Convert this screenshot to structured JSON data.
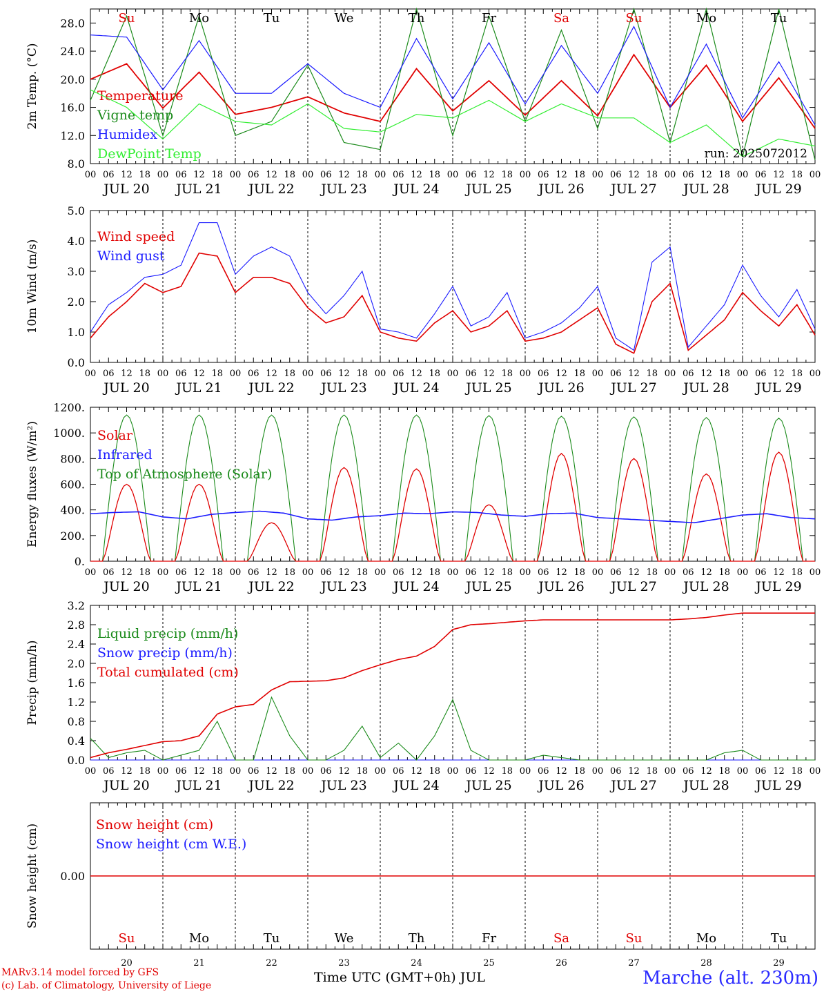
{
  "chart_data": [
    {
      "type": "line",
      "ylabel": "2m Temp. (°C)",
      "ylim": [
        8,
        30
      ],
      "yticks": [
        "8.0",
        "12.0",
        "16.0",
        "20.0",
        "24.0",
        "28.0"
      ],
      "x": [
        0,
        12,
        24,
        36,
        48,
        60,
        72,
        84,
        96,
        108,
        120,
        132,
        144,
        156,
        168,
        180,
        192,
        204,
        216,
        228,
        240
      ],
      "series": [
        {
          "name": "Temperature",
          "color": "#e00000",
          "values": [
            20.0,
            22.2,
            15.9,
            21.0,
            15.0,
            16.0,
            17.5,
            15.2,
            14.0,
            21.5,
            15.5,
            19.8,
            14.9,
            19.8,
            14.8,
            23.5,
            16.0,
            22.0,
            14.0,
            20.2,
            13.0
          ]
        },
        {
          "name": "Vigne temp",
          "color": "#1a8a1a",
          "values": [
            17.0,
            29.0,
            12.0,
            29.0,
            12.0,
            14.0,
            22.0,
            11.0,
            10.0,
            30.0,
            12.0,
            29.0,
            14.0,
            27.0,
            13.0,
            30.0,
            11.0,
            30.0,
            9.0,
            30.0,
            8.5
          ]
        },
        {
          "name": "Humidex",
          "color": "#1a1aff",
          "values": [
            26.3,
            26.0,
            18.5,
            25.5,
            18.0,
            18.0,
            22.2,
            18.0,
            16.0,
            25.8,
            17.2,
            25.2,
            16.5,
            24.8,
            18.0,
            27.5,
            16.0,
            25.0,
            14.5,
            22.5,
            13.5
          ]
        },
        {
          "name": "DewPoint Temp",
          "color": "#33ee33",
          "values": [
            18.5,
            16.0,
            11.5,
            16.5,
            14.0,
            13.5,
            16.5,
            13.0,
            12.5,
            15.0,
            14.5,
            17.0,
            14.0,
            16.5,
            14.5,
            14.5,
            11.0,
            13.5,
            9.0,
            11.5,
            10.5
          ]
        }
      ],
      "annotation": "run: 2025072012",
      "day_letters": [
        {
          "label": "Su",
          "color": "#e00000"
        },
        {
          "label": "Mo",
          "color": "#000000"
        },
        {
          "label": "Tu",
          "color": "#000000"
        },
        {
          "label": "We",
          "color": "#000000"
        },
        {
          "label": "Th",
          "color": "#000000"
        },
        {
          "label": "Fr",
          "color": "#000000"
        },
        {
          "label": "Sa",
          "color": "#e00000"
        },
        {
          "label": "Su",
          "color": "#e00000"
        },
        {
          "label": "Mo",
          "color": "#000000"
        },
        {
          "label": "Tu",
          "color": "#000000"
        }
      ]
    },
    {
      "type": "line",
      "ylabel": "10m Wind (m/s)",
      "ylim": [
        0,
        5
      ],
      "yticks": [
        "0.0",
        "1.0",
        "2.0",
        "3.0",
        "4.0",
        "5.0"
      ],
      "x": [
        0,
        6,
        12,
        18,
        24,
        30,
        36,
        42,
        48,
        54,
        60,
        66,
        72,
        78,
        84,
        90,
        96,
        102,
        108,
        114,
        120,
        126,
        132,
        138,
        144,
        150,
        156,
        162,
        168,
        174,
        180,
        186,
        192,
        198,
        204,
        210,
        216,
        222,
        228,
        234,
        240
      ],
      "series": [
        {
          "name": "Wind speed",
          "color": "#e00000",
          "values": [
            0.8,
            1.5,
            2.0,
            2.6,
            2.3,
            2.5,
            3.6,
            3.5,
            2.3,
            2.8,
            2.8,
            2.6,
            1.8,
            1.3,
            1.5,
            2.2,
            1.0,
            0.8,
            0.7,
            1.3,
            1.7,
            1.0,
            1.2,
            1.7,
            0.7,
            0.8,
            1.0,
            1.4,
            1.8,
            0.6,
            0.3,
            2.0,
            2.6,
            0.4,
            0.9,
            1.4,
            2.3,
            1.7,
            1.2,
            1.9,
            0.9
          ]
        },
        {
          "name": "Wind gust",
          "color": "#1a1aff",
          "values": [
            1.0,
            1.9,
            2.3,
            2.8,
            2.9,
            3.2,
            4.6,
            4.6,
            2.9,
            3.5,
            3.8,
            3.5,
            2.3,
            1.6,
            2.2,
            3.0,
            1.1,
            1.0,
            0.8,
            1.6,
            2.5,
            1.2,
            1.5,
            2.3,
            0.8,
            1.0,
            1.3,
            1.8,
            2.5,
            0.8,
            0.4,
            3.3,
            3.8,
            0.5,
            1.2,
            1.9,
            3.2,
            2.2,
            1.5,
            2.4,
            1.1
          ]
        }
      ]
    },
    {
      "type": "line",
      "ylabel": "Energy fluxes (W/m²)",
      "ylim": [
        0,
        1200
      ],
      "yticks": [
        "0.",
        "200.",
        "400.",
        "600.",
        "800.",
        "1000.",
        "1200."
      ],
      "solar_daily_peak": [
        600,
        600,
        300,
        730,
        720,
        440,
        840,
        800,
        680,
        850
      ],
      "toa_daily_peak": [
        1140,
        1140,
        1140,
        1140,
        1140,
        1135,
        1130,
        1125,
        1120,
        1115
      ],
      "infrared_hourly_mean": [
        370,
        380,
        385,
        345,
        330,
        365,
        380,
        390,
        375,
        330,
        320,
        345,
        355,
        375,
        370,
        385,
        380,
        360,
        350,
        370,
        375,
        340,
        330,
        320,
        310,
        300,
        330,
        360,
        370,
        340,
        330
      ],
      "series": [
        {
          "name": "Solar",
          "color": "#e00000"
        },
        {
          "name": "Infrared",
          "color": "#1a1aff"
        },
        {
          "name": "Top of Atmosphere (Solar)",
          "color": "#1a8a1a"
        }
      ]
    },
    {
      "type": "line",
      "ylabel": "Precip (mm/h)",
      "ylim": [
        0,
        3.2
      ],
      "yticks": [
        "0.0",
        "0.4",
        "0.8",
        "1.2",
        "1.6",
        "2.0",
        "2.4",
        "2.8",
        "3.2"
      ],
      "x": [
        0,
        6,
        12,
        18,
        24,
        30,
        36,
        42,
        48,
        54,
        60,
        66,
        72,
        78,
        84,
        90,
        96,
        102,
        108,
        114,
        120,
        126,
        132,
        138,
        144,
        150,
        156,
        162,
        168,
        174,
        180,
        186,
        192,
        198,
        204,
        210,
        216,
        222,
        228,
        234,
        240
      ],
      "series": [
        {
          "name": "Liquid precip (mm/h)",
          "color": "#1a8a1a",
          "values": [
            0.45,
            0.05,
            0.15,
            0.2,
            0.0,
            0.1,
            0.2,
            0.8,
            0.0,
            0.0,
            1.3,
            0.5,
            0.0,
            0.0,
            0.2,
            0.7,
            0.05,
            0.35,
            0.0,
            0.5,
            1.25,
            0.2,
            0.0,
            0.0,
            0.0,
            0.1,
            0.05,
            0.0,
            0.0,
            0.0,
            0.0,
            0.0,
            0.0,
            0.0,
            0.0,
            0.15,
            0.2,
            0.0,
            0.0,
            0.0,
            0.0
          ]
        },
        {
          "name": "Snow precip (mm/h)",
          "color": "#1a1aff",
          "values": [
            0,
            0,
            0,
            0,
            0,
            0,
            0,
            0,
            0,
            0,
            0,
            0,
            0,
            0,
            0,
            0,
            0,
            0,
            0,
            0,
            0,
            0,
            0,
            0,
            0,
            0,
            0,
            0,
            0,
            0,
            0,
            0,
            0,
            0,
            0,
            0,
            0,
            0,
            0,
            0,
            0
          ]
        },
        {
          "name": "Total cumulated (cm)",
          "color": "#e00000",
          "values": [
            0.05,
            0.15,
            0.22,
            0.3,
            0.38,
            0.4,
            0.5,
            0.95,
            1.1,
            1.15,
            1.45,
            1.62,
            1.63,
            1.64,
            1.7,
            1.85,
            1.97,
            2.08,
            2.15,
            2.35,
            2.7,
            2.8,
            2.82,
            2.85,
            2.88,
            2.9,
            2.9,
            2.9,
            2.9,
            2.9,
            2.9,
            2.9,
            2.9,
            2.92,
            2.95,
            3.0,
            3.04,
            3.04,
            3.04,
            3.04,
            3.04
          ]
        }
      ]
    },
    {
      "type": "line",
      "ylabel": "Snow height (cm)",
      "ylim": [
        -1,
        1
      ],
      "yticks": [
        "0.00"
      ],
      "series": [
        {
          "name": "Snow height (cm)",
          "color": "#e00000",
          "values": [
            0,
            0
          ]
        },
        {
          "name": "Snow height (cm W.E.)",
          "color": "#1a1aff",
          "values": [
            0,
            0
          ]
        }
      ],
      "day_numbers": [
        "20",
        "21",
        "22",
        "23",
        "24",
        "25",
        "26",
        "27",
        "28",
        "29"
      ]
    }
  ],
  "hour_ticks": [
    "00",
    "06",
    "12",
    "18"
  ],
  "hour_end_tick": "00",
  "date_labels": [
    "JUL 20",
    "JUL 21",
    "JUL 22",
    "JUL 23",
    "JUL 24",
    "JUL 25",
    "JUL 26",
    "JUL 27",
    "JUL 28",
    "JUL 29"
  ],
  "xlabel": "Time UTC (GMT+0h) JUL",
  "credits": {
    "line1": "MARv3.14 model forced by GFS",
    "line2": "(c) Lab. of Climatology, University of Liege"
  },
  "station": "Marche (alt. 230m)"
}
